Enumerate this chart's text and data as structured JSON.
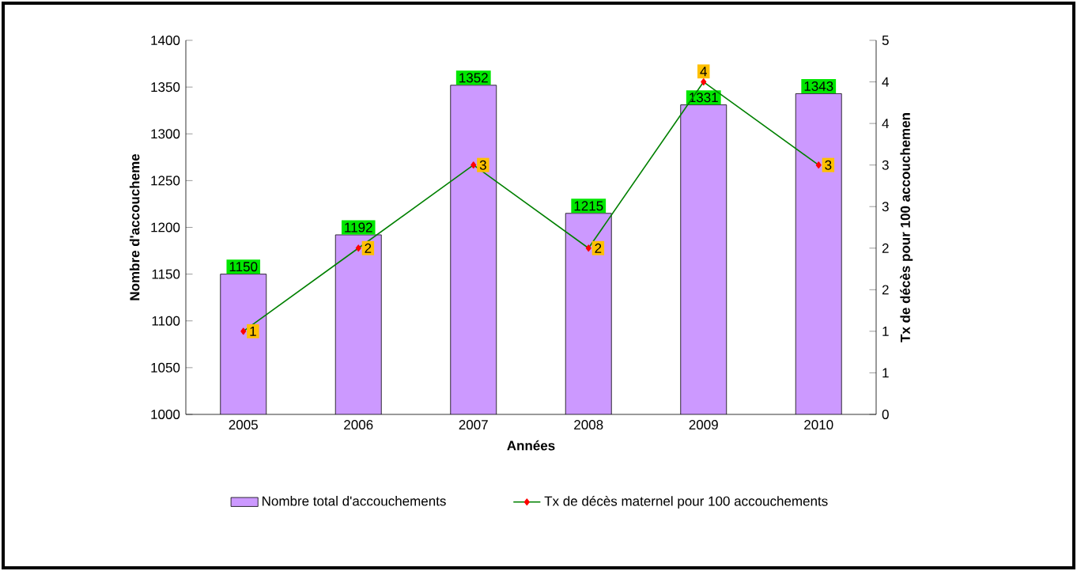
{
  "chart_data": {
    "type": "bar",
    "xlabel": "Années",
    "ylabel": "Nombre d'accoucheme",
    "y2label": "Tx de décès pour 100 accouchemen",
    "legend": "bottom",
    "categories": [
      "2005",
      "2006",
      "2007",
      "2008",
      "2009",
      "2010"
    ],
    "series": [
      {
        "name": "Nombre total d'accouchements",
        "color": "#cc99ff",
        "values": [
          1150,
          1192,
          1352,
          1215,
          1331,
          1343
        ],
        "value_labels": [
          "1150",
          "1192",
          "1352",
          "1215",
          "1331",
          "1343"
        ]
      },
      {
        "name": "Tx de décès maternel pour 100 accouchements",
        "type": "line",
        "axis": "y2",
        "color": "#008000",
        "marker": "diamond",
        "values": [
          1,
          2,
          3,
          2,
          4,
          3
        ],
        "value_labels": [
          "1",
          "2",
          "3",
          "2",
          "4",
          "3"
        ]
      }
    ],
    "ylim": [
      1000,
      1400
    ],
    "yticks": [
      1000,
      1050,
      1100,
      1150,
      1200,
      1250,
      1300,
      1350,
      1400
    ],
    "y2lim": [
      0,
      4.5
    ],
    "y2ticks": [
      0,
      {
        "value": 0.5,
        "label": "1"
      },
      1,
      {
        "value": 1.5,
        "label": "2"
      },
      2,
      {
        "value": 2.5,
        "label": "3"
      },
      3,
      {
        "value": 3.5,
        "label": "4"
      },
      4,
      {
        "value": 4.5,
        "label": "5"
      }
    ]
  }
}
